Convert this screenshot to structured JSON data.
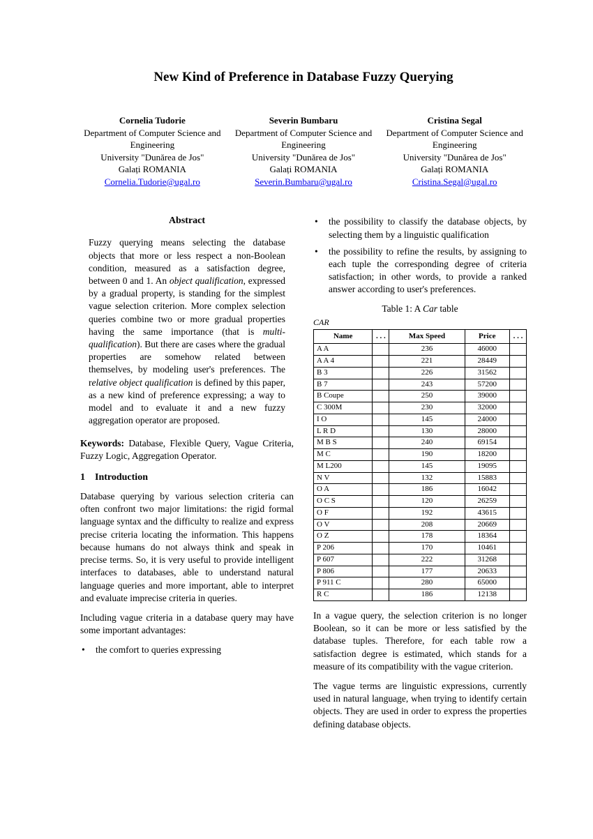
{
  "title": "New Kind of Preference in Database Fuzzy Querying",
  "authors": [
    {
      "name": "Cornelia Tudorie",
      "dept": "Department of Computer Science and Engineering",
      "univ": "University \"Dunărea de Jos\"",
      "city": "Galați ROMANIA",
      "email": "Cornelia.Tudorie@ugal.ro"
    },
    {
      "name": "Severin Bumbaru",
      "dept": "Department of Computer Science and Engineering",
      "univ": "University \"Dunărea de Jos\"",
      "city": "Galați ROMANIA",
      "email": "Severin.Bumbaru@ugal.ro"
    },
    {
      "name": "Cristina Segal",
      "dept": "Department of Computer Science and Engineering",
      "univ": "University \"Dunărea de Jos\"",
      "city": "Galați ROMANIA",
      "email": "Cristina.Segal@ugal.ro"
    }
  ],
  "abstract_heading": "Abstract",
  "abstract_html": "Fuzzy querying means selecting the database objects that more or less respect a non-Boolean condition, measured as a satisfaction degree, between 0 and 1. An <span class=\"italic\">object qualification</span>, expressed by a gradual property, is standing for the simplest vague selection criterion. More complex selection queries combine two or more gradual properties having the same importance (that is <span class=\"italic\">multi-qualification</span>). But there are cases where the gradual properties are somehow related between themselves, by modeling user's preferences. The r<span class=\"italic\">elative object qualification</span> is defined by this paper, as a new kind of preference expressing; a way to model and to evaluate it and a new fuzzy aggregation operator are proposed.",
  "keywords_label": "Keywords:",
  "keywords_text": " Database, Flexible Query, Vague Criteria, Fuzzy Logic, Aggregation Operator.",
  "section1_num": "1",
  "section1_title": "Introduction",
  "intro_p1": "Database querying by various selection criteria can often confront two major limitations: the rigid formal language syntax and the difficulty to realize and express precise criteria locating the information. This happens because humans do not always think and speak in precise terms. So, it is very useful to provide intelligent interfaces to databases, able to understand natural language queries and more important, able to interpret and evaluate imprecise criteria in queries.",
  "intro_p2": "Including vague criteria in a database query may have some important advantages:",
  "bullet_left_1": "the comfort to queries expressing",
  "bullet_right_1": "the possibility to classify the database objects, by selecting them by a linguistic qualification",
  "bullet_right_2": "the possibility to refine the results, by assigning to each tuple the corresponding degree of criteria satisfaction; in other words, to provide a ranked answer according to user's preferences.",
  "table_caption_html": "Table 1: A <span class=\"italic\">Car</span>  table",
  "table_label": "CAR",
  "table_headers": {
    "name": "Name",
    "dots": ". . .",
    "maxspeed": "Max Speed",
    "price": "Price"
  },
  "table_rows": [
    {
      "name": "A A",
      "maxspeed": "236",
      "price": "46000"
    },
    {
      "name": "A A 4",
      "maxspeed": "221",
      "price": "28449"
    },
    {
      "name": "B 3",
      "maxspeed": "226",
      "price": "31562"
    },
    {
      "name": "B 7",
      "maxspeed": "243",
      "price": "57200"
    },
    {
      "name": "B Coupe",
      "maxspeed": "250",
      "price": "39000"
    },
    {
      "name": "C 300M",
      "maxspeed": "230",
      "price": "32000"
    },
    {
      "name": "I O",
      "maxspeed": "145",
      "price": "24000"
    },
    {
      "name": "L R D",
      "maxspeed": "130",
      "price": "28000"
    },
    {
      "name": "M B S",
      "maxspeed": "240",
      "price": "69154"
    },
    {
      "name": "M C",
      "maxspeed": "190",
      "price": "18200"
    },
    {
      "name": "M L200",
      "maxspeed": "145",
      "price": "19095"
    },
    {
      "name": "N V",
      "maxspeed": "132",
      "price": "15883"
    },
    {
      "name": "O A",
      "maxspeed": "186",
      "price": "16042"
    },
    {
      "name": "O C S",
      "maxspeed": "120",
      "price": "26259"
    },
    {
      "name": "O F",
      "maxspeed": "192",
      "price": "43615"
    },
    {
      "name": "O V",
      "maxspeed": "208",
      "price": "20669"
    },
    {
      "name": "O Z",
      "maxspeed": "178",
      "price": "18364"
    },
    {
      "name": "P 206",
      "maxspeed": "170",
      "price": "10461"
    },
    {
      "name": "P 607",
      "maxspeed": "222",
      "price": "31268"
    },
    {
      "name": "P 806",
      "maxspeed": "177",
      "price": "20633"
    },
    {
      "name": "P 911 C",
      "maxspeed": "280",
      "price": "65000"
    },
    {
      "name": "R C",
      "maxspeed": "186",
      "price": "12138"
    }
  ],
  "right_p1": "In a vague query, the selection criterion is no longer Boolean, so it can be more or less satisfied by the database tuples. Therefore, for each table row a satisfaction degree is estimated, which stands for a measure of its compatibility with the vague criterion.",
  "right_p2": "The vague terms are linguistic expressions, currently used in natural language, when trying to identify certain objects. They are used in order to express the properties defining database objects."
}
